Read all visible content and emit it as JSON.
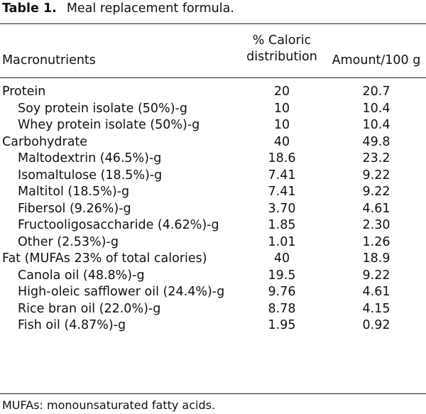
{
  "table": {
    "label": "Table 1.",
    "caption": "Meal replacement formula.",
    "headers": {
      "macronutrients": "Macronutrients",
      "caloric_line1": "% Caloric",
      "caloric_line2": "distribution",
      "amount": "Amount/100 g"
    },
    "rows": [
      {
        "name": "Protein",
        "pct": "20",
        "amount": "20.7",
        "level": "main"
      },
      {
        "name": "Soy protein isolate (50%)-g",
        "pct": "10",
        "amount": "10.4",
        "level": "sub"
      },
      {
        "name": "Whey protein isolate (50%)-g",
        "pct": "10",
        "amount": "10.4",
        "level": "sub"
      },
      {
        "name": "Carbohydrate",
        "pct": "40",
        "amount": "49.8",
        "level": "main"
      },
      {
        "name": "Maltodextrin (46.5%)-g",
        "pct": "18.6",
        "amount": "23.2",
        "level": "sub"
      },
      {
        "name": "Isomaltulose (18.5%)-g",
        "pct": "7.41",
        "amount": "9.22",
        "level": "sub"
      },
      {
        "name": "Maltitol (18.5%)-g",
        "pct": "7.41",
        "amount": "9.22",
        "level": "sub"
      },
      {
        "name": "Fibersol (9.26%)-g",
        "pct": "3.70",
        "amount": "4.61",
        "level": "sub"
      },
      {
        "name": "Fructooligosaccharide (4.62%)-g",
        "pct": "1.85",
        "amount": "2.30",
        "level": "sub"
      },
      {
        "name": "Other (2.53%)-g",
        "pct": "1.01",
        "amount": "1.26",
        "level": "sub"
      },
      {
        "name": "Fat (MUFAs 23% of total calories)",
        "pct": "40",
        "amount": "18.9",
        "level": "main"
      },
      {
        "name": "Canola oil (48.8%)-g",
        "pct": "19.5",
        "amount": "9.22",
        "level": "sub"
      },
      {
        "name": "High-oleic safflower oil (24.4%)-g",
        "pct": "9.76",
        "amount": "4.61",
        "level": "sub"
      },
      {
        "name": "Rice bran oil (22.0%)-g",
        "pct": "8.78",
        "amount": "4.15",
        "level": "sub"
      },
      {
        "name": "Fish oil (4.87%)-g",
        "pct": "1.95",
        "amount": "0.92",
        "level": "sub"
      }
    ],
    "footnote": "MUFAs: monounsaturated fatty acids."
  }
}
